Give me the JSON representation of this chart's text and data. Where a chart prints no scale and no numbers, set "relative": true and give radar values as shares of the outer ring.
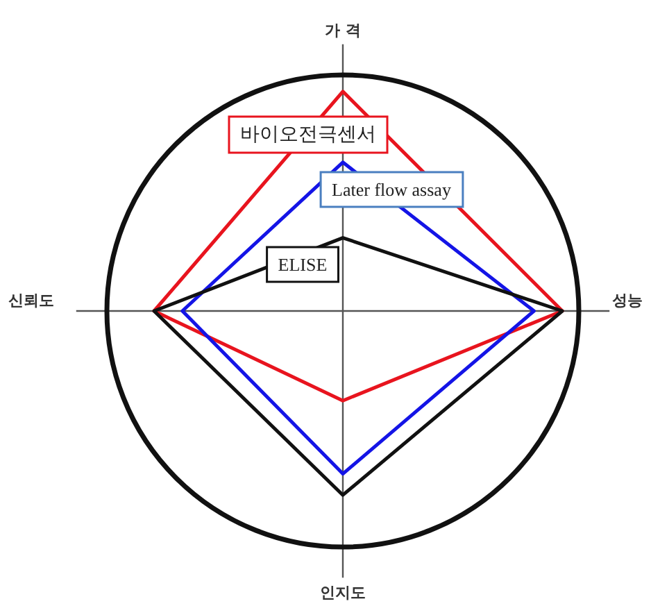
{
  "chart_data": {
    "type": "radar",
    "relative": true,
    "categories": [
      "가 격",
      "성능",
      "인지도",
      "신뢰도"
    ],
    "series": [
      {
        "name": "바이오전극센서",
        "color": "#e8141e",
        "values": [
          0.93,
          0.93,
          0.38,
          0.8
        ]
      },
      {
        "name": "Later flow assay",
        "color": "#1414e6",
        "values": [
          0.63,
          0.81,
          0.69,
          0.68
        ]
      },
      {
        "name": "ELISE",
        "color": "#111111",
        "values": [
          0.31,
          0.93,
          0.78,
          0.8
        ]
      }
    ]
  }
}
